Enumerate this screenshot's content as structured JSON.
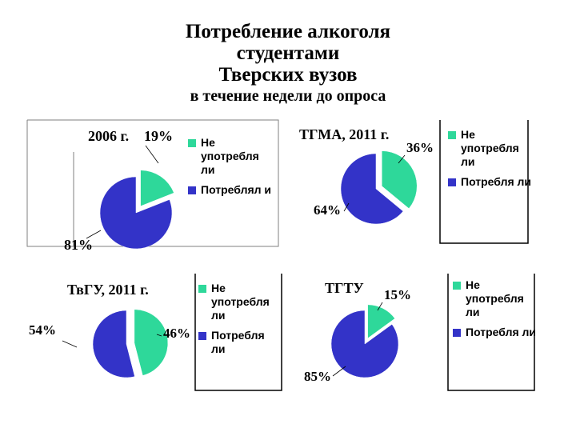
{
  "title": {
    "line1": "Потребление алкоголя",
    "line2": "студентами",
    "line3": "Тверских вузов",
    "subtitle": "в течение недели до опроса"
  },
  "colors": {
    "abstain": "#2ed89a",
    "drink": "#3333c8",
    "frame": "#7f7f7f"
  },
  "chart_data": [
    {
      "type": "pie",
      "title": "2006 г.",
      "series": [
        {
          "name": "Не употребляли",
          "value": 19,
          "label": "19%"
        },
        {
          "name": "Потребляли",
          "value": 81,
          "label": "81%"
        }
      ],
      "legend": [
        "Не употребляли",
        "Потребляли"
      ]
    },
    {
      "type": "pie",
      "title": "ТГМА, 2011 г.",
      "series": [
        {
          "name": "Не употребляли",
          "value": 36,
          "label": "36%"
        },
        {
          "name": "Потребляли",
          "value": 64,
          "label": "64%"
        }
      ],
      "legend": [
        "Не употребляли",
        "Потребляли"
      ]
    },
    {
      "type": "pie",
      "title": "ТвГУ, 2011 г.",
      "series": [
        {
          "name": "Не употребляли",
          "value": 46,
          "label": "46%"
        },
        {
          "name": "Потребляли",
          "value": 54,
          "label": "54%"
        }
      ],
      "legend": [
        "Не употребляли",
        "Потребляли"
      ]
    },
    {
      "type": "pie",
      "title": "ТГТУ",
      "series": [
        {
          "name": "Не употребляли",
          "value": 15,
          "label": "15%"
        },
        {
          "name": "Потребляли",
          "value": 85,
          "label": "85%"
        }
      ],
      "legend": [
        "Не употребляли",
        "Потребляли"
      ]
    }
  ],
  "legend_display": [
    [
      "Не употребля ли",
      "Потреблял и"
    ],
    [
      "Не употребля ли",
      "Потребля ли"
    ],
    [
      "Не употребля ли",
      "Потребля ли"
    ],
    [
      "Не употребля ли",
      "Потребля ли"
    ]
  ]
}
